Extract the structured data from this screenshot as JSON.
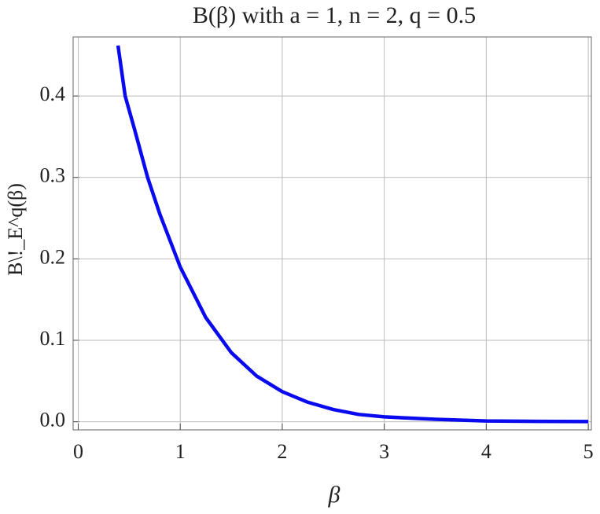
{
  "chart_data": {
    "type": "line",
    "title": "B(β) with a = 1, n = 2, q = 0.5",
    "x_label": "β",
    "y_label": "B\\!_E^q(β)",
    "x": [
      0.39,
      0.46,
      0.55,
      0.68,
      0.8,
      1,
      1.25,
      1.5,
      1.75,
      2,
      2.25,
      2.5,
      2.75,
      3,
      3.5,
      4,
      4.5,
      5
    ],
    "series": [
      {
        "color": "#0a0aee",
        "values": [
          0.462,
          0.4,
          0.36,
          0.3,
          0.255,
          0.19,
          0.128,
          0.085,
          0.056,
          0.037,
          0.024,
          0.015,
          0.009,
          0.006,
          0.003,
          0.001,
          0.0005,
          0.0002
        ]
      }
    ],
    "xlim": [
      -0.05,
      5.03
    ],
    "ylim": [
      -0.01,
      0.4725
    ],
    "xticks": [
      0,
      1,
      2,
      3,
      4,
      5
    ],
    "yticks": [
      {
        "value": 0,
        "label": "0.0"
      },
      0.1,
      0.2,
      0.3,
      0.4
    ],
    "grid": true
  }
}
